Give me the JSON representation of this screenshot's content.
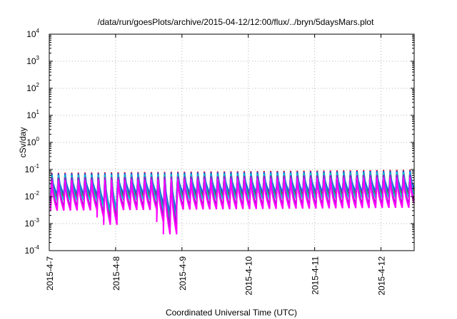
{
  "chart_data": {
    "type": "line",
    "title": "/data/run/goesPlots/archive/2015-04-12/12:00/flux/../bryn/5daysMars.plot",
    "xlabel": "Coordinated Universal Time (UTC)",
    "ylabel": "cSv/day",
    "yscale": "log",
    "ylim": [
      0.0001,
      10000
    ],
    "y_ticks": [
      {
        "base": "10",
        "exp": "-4",
        "value": 0.0001
      },
      {
        "base": "10",
        "exp": "-3",
        "value": 0.001
      },
      {
        "base": "10",
        "exp": "-2",
        "value": 0.01
      },
      {
        "base": "10",
        "exp": "-1",
        "value": 0.1
      },
      {
        "base": "10",
        "exp": "0",
        "value": 1
      },
      {
        "base": "10",
        "exp": "1",
        "value": 10
      },
      {
        "base": "10",
        "exp": "2",
        "value": 100
      },
      {
        "base": "10",
        "exp": "3",
        "value": 1000
      },
      {
        "base": "10",
        "exp": "4",
        "value": 10000
      }
    ],
    "xlim": [
      "2015-04-07T00:00",
      "2015-04-12T12:00"
    ],
    "x_ticks": [
      "2015-4-7",
      "2015-4-8",
      "2015-4-9",
      "2015-4-10",
      "2015-4-11",
      "2015-4-12"
    ],
    "grid": true,
    "legend": "none",
    "series": [
      {
        "color": "#e0001a",
        "peak": 0.075,
        "trough": 0.009,
        "dips": [
          {
            "day": 0.85,
            "value": 0.002
          },
          {
            "day": 1.75,
            "value": 0.0017
          }
        ]
      },
      {
        "color": "#2060e0",
        "peak": 0.07,
        "trough": 0.012,
        "dips": [
          {
            "day": 0.85,
            "value": 0.003
          },
          {
            "day": 1.75,
            "value": 0.0025
          }
        ]
      },
      {
        "color": "#00c8c8",
        "peak": 0.06,
        "trough": 0.007,
        "dips": [
          {
            "day": 0.85,
            "value": 0.0025
          },
          {
            "day": 1.75,
            "value": 0.0012
          }
        ]
      },
      {
        "color": "#9020c0",
        "peak": 0.05,
        "trough": 0.004,
        "dips": [
          {
            "day": 0.85,
            "value": 0.0012
          },
          {
            "day": 1.75,
            "value": 0.0008
          }
        ]
      },
      {
        "color": "#ff00ff",
        "peak": 0.04,
        "trough": 0.003,
        "dips": [
          {
            "day": 0.85,
            "value": 0.0009
          },
          {
            "day": 1.75,
            "value": 0.0004
          }
        ]
      }
    ],
    "cycles_per_day": 10,
    "upward_trend": 1.3
  }
}
